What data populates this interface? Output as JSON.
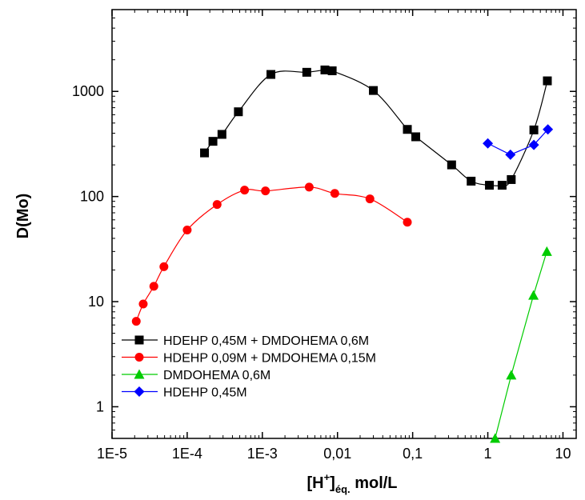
{
  "chart_data": {
    "type": "scatter",
    "title": "",
    "xscale": "log",
    "yscale": "log",
    "xlim": [
      1e-05,
      15
    ],
    "ylim": [
      0.5,
      6000
    ],
    "xtick_values": [
      1e-05,
      0.0001,
      0.001,
      0.01,
      0.1,
      1,
      10
    ],
    "xtick_labels": [
      "1E-5",
      "1E-4",
      "1E-3",
      "0,01",
      "0,1",
      "1",
      "10"
    ],
    "ytick_values": [
      1,
      10,
      100,
      1000
    ],
    "ytick_labels": [
      "1",
      "10",
      "100",
      "1000"
    ],
    "ylabel": "D(Mo)",
    "xlabel": {
      "part1": "[H",
      "sup": "+",
      "part2": "]",
      "sub": "éq.",
      "part3": " mol/L"
    },
    "grid": false,
    "legend_position": "bottom-left",
    "series": [
      {
        "name": "HDEHP 0,45M + DMDOHEMA 0,6M",
        "color": "#000000",
        "marker": "square",
        "line": "smooth",
        "points": [
          [
            0.00017,
            260
          ],
          [
            0.00022,
            335
          ],
          [
            0.00029,
            390
          ],
          [
            0.00048,
            640
          ],
          [
            0.0013,
            1450
          ],
          [
            0.0039,
            1520
          ],
          [
            0.0068,
            1600
          ],
          [
            0.0085,
            1570
          ],
          [
            0.03,
            1020
          ],
          [
            0.085,
            435
          ],
          [
            0.11,
            370
          ],
          [
            0.33,
            200
          ],
          [
            0.6,
            140
          ],
          [
            1.05,
            128
          ],
          [
            1.55,
            128
          ],
          [
            2.05,
            145
          ],
          [
            4.1,
            430
          ],
          [
            6.2,
            1260
          ]
        ]
      },
      {
        "name": "HDEHP 0,09M + DMDOHEMA 0,15M",
        "color": "#ff0000",
        "marker": "circle",
        "line": "smooth",
        "points": [
          [
            2.1e-05,
            6.5
          ],
          [
            2.6e-05,
            9.5
          ],
          [
            3.6e-05,
            14
          ],
          [
            4.9e-05,
            21.5
          ],
          [
            0.0001,
            48
          ],
          [
            0.00025,
            84
          ],
          [
            0.00058,
            115
          ],
          [
            0.0011,
            113
          ],
          [
            0.0042,
            123
          ],
          [
            0.0092,
            107
          ],
          [
            0.027,
            95
          ],
          [
            0.085,
            57
          ]
        ]
      },
      {
        "name": "DMDOHEMA 0,6M",
        "color": "#00cc00",
        "marker": "triangle",
        "line": "straight",
        "points": [
          [
            1.25,
            0.5
          ],
          [
            2.05,
            2
          ],
          [
            4.05,
            11.5
          ],
          [
            6.1,
            30
          ]
        ]
      },
      {
        "name": "HDEHP 0,45M",
        "color": "#0000ff",
        "marker": "diamond",
        "line": "straight",
        "points": [
          [
            1.0,
            320
          ],
          [
            2.0,
            250
          ],
          [
            4.1,
            310
          ],
          [
            6.3,
            435
          ]
        ]
      }
    ]
  }
}
